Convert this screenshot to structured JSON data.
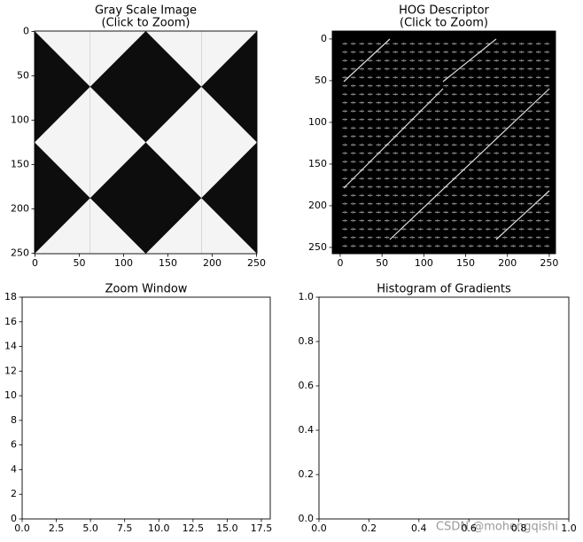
{
  "chart_data": [
    {
      "type": "image",
      "title": [
        "Gray Scale Image",
        "(Click to Zoom)"
      ],
      "xlim": [
        -0.5,
        250.5
      ],
      "ylim": [
        250.5,
        -0.5
      ],
      "xticks": [
        0,
        50,
        100,
        150,
        200,
        250
      ],
      "yticks": [
        0,
        50,
        100,
        150,
        200,
        250
      ]
    },
    {
      "type": "image",
      "title": [
        "HOG Descriptor",
        "(Click to Zoom)"
      ],
      "xlim": [
        -9.5,
        257.5
      ],
      "ylim": [
        257.5,
        -9.5
      ],
      "xticks": [
        0,
        50,
        100,
        150,
        200,
        250
      ],
      "yticks": [
        0,
        50,
        100,
        150,
        200,
        250
      ]
    },
    {
      "type": "empty",
      "title": [
        "Zoom Window"
      ],
      "xlim": [
        0,
        18.15
      ],
      "ylim": [
        0,
        18
      ],
      "xticks": [
        {
          "value": 0,
          "label": "0.0"
        },
        2.5,
        {
          "value": 5,
          "label": "5.0"
        },
        7.5,
        {
          "value": 10,
          "label": "10.0"
        },
        12.5,
        {
          "value": 15,
          "label": "15.0"
        },
        17.5
      ],
      "yticks": [
        0,
        2,
        4,
        6,
        8,
        10,
        12,
        14,
        16,
        18
      ]
    },
    {
      "type": "empty",
      "title": [
        "Histogram of Gradients"
      ],
      "xlim": [
        0,
        1
      ],
      "ylim": [
        0,
        1
      ],
      "xticks": [
        {
          "value": 0,
          "label": "0.0"
        },
        0.2,
        0.4,
        0.6,
        0.8,
        {
          "value": 1,
          "label": "1.0"
        }
      ],
      "yticks": [
        {
          "value": 0,
          "label": "0.0"
        },
        0.2,
        0.4,
        0.6,
        0.8,
        {
          "value": 1,
          "label": "1.0"
        }
      ]
    }
  ],
  "watermark": "CSDN @mohengqishi"
}
